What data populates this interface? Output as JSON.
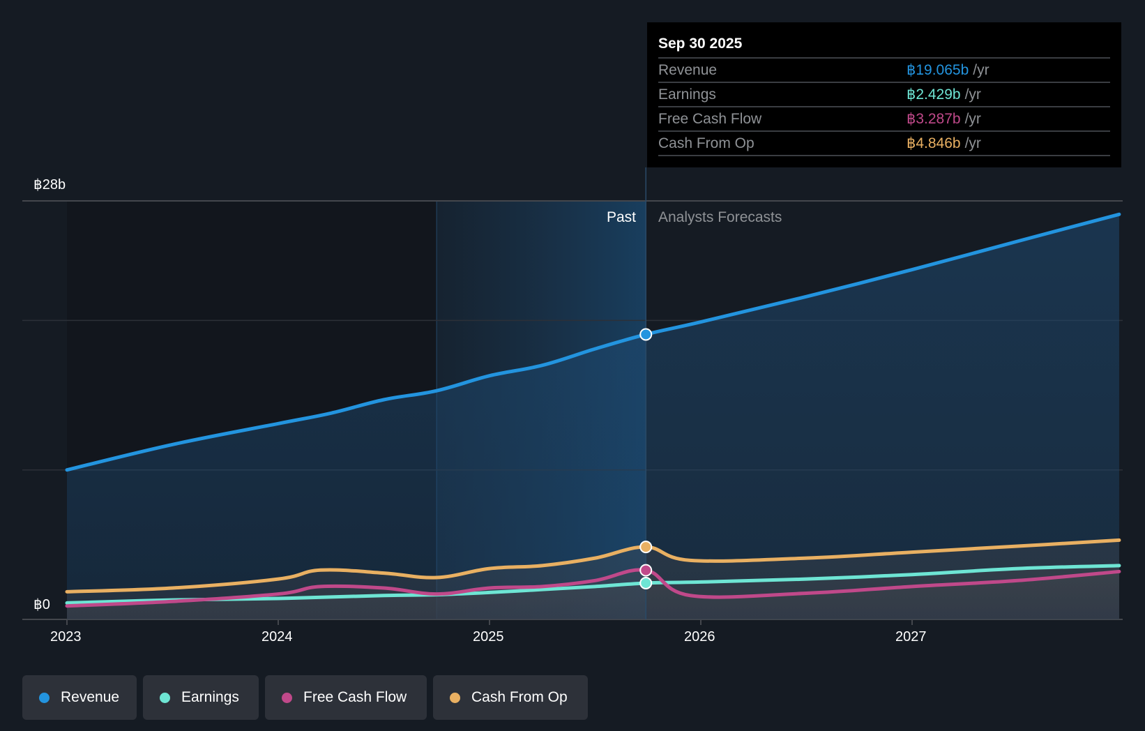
{
  "tooltip": {
    "date": "Sep 30 2025",
    "rows": [
      {
        "label": "Revenue",
        "value": "฿19.065b",
        "unit": "/yr",
        "color": "#2394df"
      },
      {
        "label": "Earnings",
        "value": "฿2.429b",
        "unit": "/yr",
        "color": "#6ee5d4"
      },
      {
        "label": "Free Cash Flow",
        "value": "฿3.287b",
        "unit": "/yr",
        "color": "#c0498a"
      },
      {
        "label": "Cash From Op",
        "value": "฿4.846b",
        "unit": "/yr",
        "color": "#e9b062"
      }
    ]
  },
  "regions": {
    "past": "Past",
    "forecast": "Analysts Forecasts"
  },
  "legend": [
    {
      "label": "Revenue",
      "color": "#2394df"
    },
    {
      "label": "Earnings",
      "color": "#6ee5d4"
    },
    {
      "label": "Free Cash Flow",
      "color": "#c0498a"
    },
    {
      "label": "Cash From Op",
      "color": "#e9b062"
    }
  ],
  "chart_data": {
    "type": "area",
    "title": "",
    "xlabel": "",
    "ylabel": "",
    "currency": "฿",
    "ylim": [
      0,
      28
    ],
    "xlim": [
      2023.0,
      2027.98
    ],
    "y_tick_labels": [
      "฿0",
      "฿28b"
    ],
    "gridlines_at": [
      0,
      10,
      20,
      28
    ],
    "x_ticks": [
      2023,
      2024,
      2025,
      2026,
      2027
    ],
    "x_tick_labels": [
      "2023",
      "2024",
      "2025",
      "2026",
      "2027"
    ],
    "past_shade_start": 2024.75,
    "divider_x": 2025.74,
    "grid": true,
    "legend_position": "bottom-left",
    "series": [
      {
        "name": "Revenue",
        "color": "#2394df",
        "x": [
          2023.0,
          2023.5,
          2024.0,
          2024.25,
          2024.5,
          2024.75,
          2025.0,
          2025.25,
          2025.5,
          2025.74,
          2026.0,
          2026.5,
          2027.0,
          2027.5,
          2027.98
        ],
        "values": [
          10.0,
          11.7,
          13.1,
          13.8,
          14.7,
          15.3,
          16.3,
          17.0,
          18.1,
          19.065,
          19.9,
          21.6,
          23.4,
          25.3,
          27.1
        ]
      },
      {
        "name": "Cash From Op",
        "color": "#e9b062",
        "x": [
          2023.0,
          2023.5,
          2024.0,
          2024.2,
          2024.5,
          2024.75,
          2025.0,
          2025.25,
          2025.5,
          2025.74,
          2025.95,
          2026.5,
          2027.0,
          2027.5,
          2027.98
        ],
        "values": [
          1.85,
          2.1,
          2.7,
          3.3,
          3.1,
          2.8,
          3.4,
          3.6,
          4.1,
          4.846,
          3.95,
          4.1,
          4.5,
          4.9,
          5.3
        ]
      },
      {
        "name": "Earnings",
        "color": "#6ee5d4",
        "x": [
          2023.0,
          2023.5,
          2024.0,
          2024.5,
          2024.75,
          2025.0,
          2025.25,
          2025.5,
          2025.74,
          2026.0,
          2026.5,
          2027.0,
          2027.5,
          2027.98
        ],
        "values": [
          1.1,
          1.3,
          1.4,
          1.6,
          1.65,
          1.8,
          2.0,
          2.2,
          2.429,
          2.5,
          2.7,
          3.0,
          3.4,
          3.6
        ]
      },
      {
        "name": "Free Cash Flow",
        "color": "#c0498a",
        "x": [
          2023.0,
          2023.5,
          2024.0,
          2024.2,
          2024.5,
          2024.75,
          2025.0,
          2025.25,
          2025.5,
          2025.74,
          2025.95,
          2026.5,
          2027.0,
          2027.5,
          2027.98
        ],
        "values": [
          0.9,
          1.2,
          1.7,
          2.2,
          2.1,
          1.7,
          2.1,
          2.2,
          2.6,
          3.287,
          1.6,
          1.75,
          2.2,
          2.6,
          3.2
        ]
      }
    ]
  }
}
